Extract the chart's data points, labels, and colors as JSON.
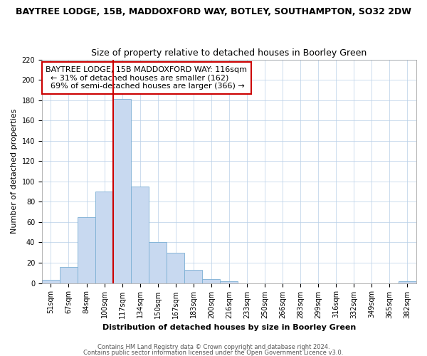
{
  "title": "BAYTREE LODGE, 15B, MADDOXFORD WAY, BOTLEY, SOUTHAMPTON, SO32 2DW",
  "subtitle": "Size of property relative to detached houses in Boorley Green",
  "xlabel": "Distribution of detached houses by size in Boorley Green",
  "ylabel": "Number of detached properties",
  "bin_labels": [
    "51sqm",
    "67sqm",
    "84sqm",
    "100sqm",
    "117sqm",
    "134sqm",
    "150sqm",
    "167sqm",
    "183sqm",
    "200sqm",
    "216sqm",
    "233sqm",
    "250sqm",
    "266sqm",
    "283sqm",
    "299sqm",
    "316sqm",
    "332sqm",
    "349sqm",
    "365sqm",
    "382sqm"
  ],
  "bar_values": [
    3,
    16,
    65,
    90,
    181,
    95,
    40,
    30,
    13,
    4,
    2,
    0,
    0,
    0,
    0,
    0,
    0,
    0,
    0,
    0,
    2
  ],
  "bar_color": "#c8d9f0",
  "bar_edge_color": "#7bafd4",
  "vline_x_index": 4,
  "vline_color": "#cc0000",
  "ylim": [
    0,
    220
  ],
  "yticks": [
    0,
    20,
    40,
    60,
    80,
    100,
    120,
    140,
    160,
    180,
    200,
    220
  ],
  "annotation_title": "BAYTREE LODGE, 15B MADDOXFORD WAY: 116sqm",
  "annotation_line1": "← 31% of detached houses are smaller (162)",
  "annotation_line2": "69% of semi-detached houses are larger (366) →",
  "footer1": "Contains HM Land Registry data © Crown copyright and database right 2024.",
  "footer2": "Contains public sector information licensed under the Open Government Licence v3.0.",
  "title_fontsize": 9,
  "subtitle_fontsize": 9,
  "xlabel_fontsize": 8,
  "ylabel_fontsize": 8,
  "tick_fontsize": 7,
  "annotation_fontsize": 8,
  "footer_fontsize": 6
}
